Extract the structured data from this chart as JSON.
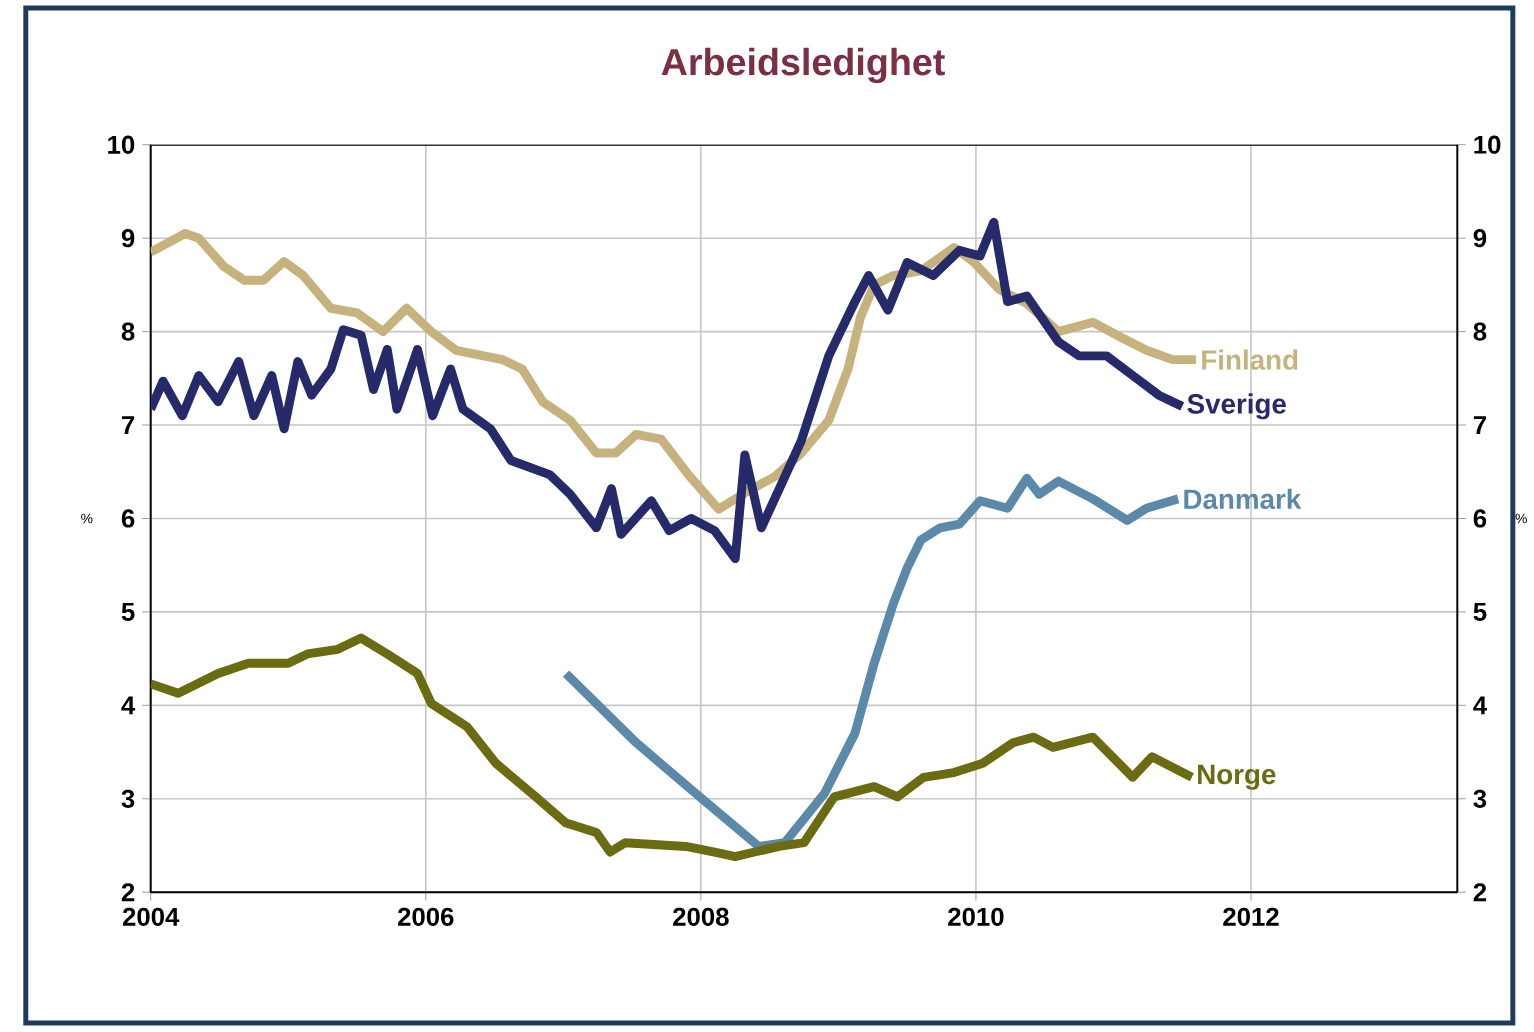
{
  "chart_data": {
    "type": "line",
    "title": "Arbeidsledighet",
    "ylabel": "%",
    "y2label": "%",
    "xlim": [
      2004,
      2013.5
    ],
    "xticks": [
      2004,
      2006,
      2008,
      2010,
      2012
    ],
    "ylim": [
      2,
      10
    ],
    "yticks": [
      2,
      3,
      4,
      5,
      6,
      7,
      8,
      9,
      10
    ],
    "y2lim": [
      2,
      10
    ],
    "y2ticks": [
      2,
      3,
      4,
      5,
      6,
      7,
      8,
      9,
      10
    ],
    "grid": true,
    "legend": false,
    "marker": "none",
    "line_style": "solid",
    "series": [
      {
        "name": "Finland",
        "color": "#c6b27c",
        "x": [
          2004.0,
          2004.25,
          2004.35,
          2004.53,
          2004.68,
          2004.82,
          2004.97,
          2005.11,
          2005.31,
          2005.5,
          2005.69,
          2005.86,
          2006.04,
          2006.22,
          2006.56,
          2006.7,
          2006.85,
          2007.05,
          2007.24,
          2007.38,
          2007.53,
          2007.71,
          2007.92,
          2008.13,
          2008.35,
          2008.54,
          2008.73,
          2008.93,
          2009.07,
          2009.16,
          2009.26,
          2009.4,
          2009.6,
          2009.84,
          2009.98,
          2010.17,
          2010.37,
          2010.6,
          2010.85,
          2011.04,
          2011.24,
          2011.43,
          2011.6
        ],
        "values": [
          8.85,
          9.05,
          9.0,
          8.7,
          8.55,
          8.55,
          8.75,
          8.6,
          8.25,
          8.2,
          8.0,
          8.25,
          8.0,
          7.8,
          7.7,
          7.6,
          7.25,
          7.05,
          6.7,
          6.7,
          6.9,
          6.85,
          6.45,
          6.1,
          6.3,
          6.45,
          6.7,
          7.05,
          7.6,
          8.15,
          8.5,
          8.6,
          8.65,
          8.9,
          8.75,
          8.45,
          8.3,
          8.0,
          8.1,
          7.95,
          7.8,
          7.7,
          7.7
        ]
      },
      {
        "name": "Sverige",
        "color": "#262a6a",
        "x": [
          2004.0,
          2004.09,
          2004.23,
          2004.35,
          2004.49,
          2004.64,
          2004.75,
          2004.88,
          2004.97,
          2005.07,
          2005.17,
          2005.31,
          2005.4,
          2005.53,
          2005.62,
          2005.72,
          2005.79,
          2005.94,
          2006.05,
          2006.18,
          2006.27,
          2006.47,
          2006.62,
          2006.9,
          2007.05,
          2007.24,
          2007.35,
          2007.42,
          2007.64,
          2007.77,
          2007.93,
          2008.1,
          2008.25,
          2008.32,
          2008.44,
          2008.73,
          2008.93,
          2009.12,
          2009.22,
          2009.36,
          2009.5,
          2009.69,
          2009.88,
          2010.03,
          2010.13,
          2010.23,
          2010.37,
          2010.6,
          2010.75,
          2010.95,
          2011.14,
          2011.33,
          2011.5
        ],
        "values": [
          7.17,
          7.47,
          7.1,
          7.53,
          7.25,
          7.68,
          7.1,
          7.53,
          6.96,
          7.68,
          7.32,
          7.6,
          8.02,
          7.96,
          7.38,
          7.81,
          7.17,
          7.81,
          7.1,
          7.6,
          7.17,
          6.96,
          6.62,
          6.47,
          6.26,
          5.9,
          6.32,
          5.83,
          6.19,
          5.87,
          6.0,
          5.87,
          5.57,
          6.68,
          5.9,
          6.83,
          7.74,
          8.32,
          8.6,
          8.23,
          8.74,
          8.6,
          8.87,
          8.81,
          9.17,
          8.32,
          8.38,
          7.89,
          7.74,
          7.74,
          7.53,
          7.32,
          7.2
        ]
      },
      {
        "name": "Danmark",
        "color": "#5a89aa",
        "x": [
          2007.02,
          2007.53,
          2007.96,
          2008.42,
          2008.61,
          2008.9,
          2009.12,
          2009.26,
          2009.4,
          2009.5,
          2009.6,
          2009.74,
          2009.88,
          2010.03,
          2010.23,
          2010.37,
          2010.46,
          2010.6,
          2010.85,
          2011.1,
          2011.24,
          2011.47
        ],
        "values": [
          4.34,
          3.6,
          3.06,
          2.49,
          2.53,
          3.06,
          3.7,
          4.45,
          5.09,
          5.47,
          5.77,
          5.9,
          5.94,
          6.19,
          6.11,
          6.43,
          6.26,
          6.4,
          6.21,
          5.98,
          6.11,
          6.21
        ]
      },
      {
        "name": "Norge",
        "color": "#6b6b12",
        "x": [
          2004.0,
          2004.2,
          2004.49,
          2004.71,
          2005.0,
          2005.14,
          2005.36,
          2005.53,
          2005.72,
          2005.94,
          2006.04,
          2006.3,
          2006.51,
          2006.8,
          2007.02,
          2007.24,
          2007.34,
          2007.45,
          2007.89,
          2008.1,
          2008.25,
          2008.39,
          2008.57,
          2008.75,
          2008.97,
          2009.26,
          2009.43,
          2009.62,
          2009.84,
          2010.05,
          2010.27,
          2010.42,
          2010.56,
          2010.85,
          2011.14,
          2011.28,
          2011.57
        ],
        "values": [
          4.23,
          4.13,
          4.34,
          4.45,
          4.45,
          4.55,
          4.6,
          4.72,
          4.55,
          4.34,
          4.02,
          3.77,
          3.38,
          3.02,
          2.74,
          2.64,
          2.43,
          2.53,
          2.49,
          2.43,
          2.38,
          2.43,
          2.49,
          2.53,
          3.02,
          3.13,
          3.02,
          3.23,
          3.28,
          3.38,
          3.6,
          3.66,
          3.55,
          3.66,
          3.23,
          3.45,
          3.23
        ]
      }
    ]
  }
}
